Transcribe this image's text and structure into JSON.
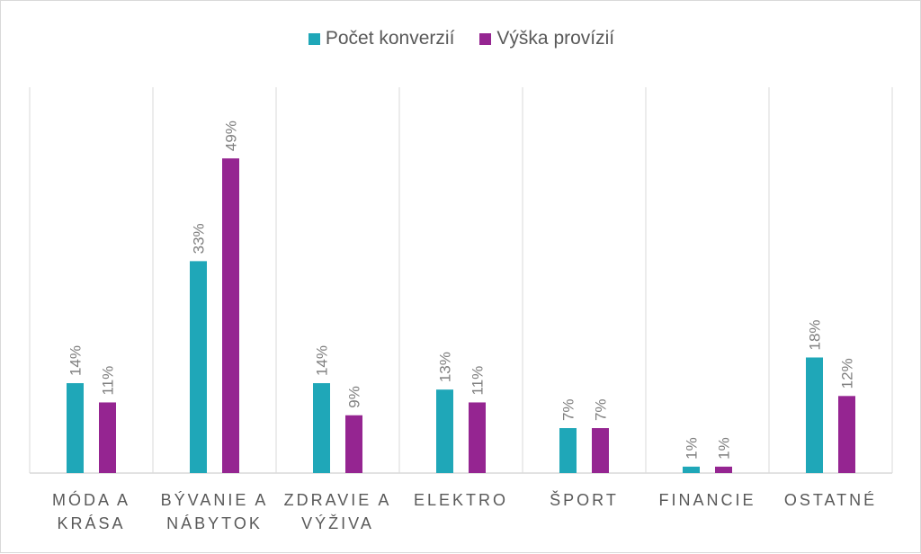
{
  "chart_data": {
    "type": "bar",
    "categories": [
      "MÓDA A KRÁSA",
      "BÝVANIE A NÁBYTOK",
      "ZDRAVIE A VÝŽIVA",
      "ELEKTRO",
      "ŠPORT",
      "FINANCIE",
      "OSTATNÉ"
    ],
    "series": [
      {
        "name": "Počet konverzií",
        "color": "#1fa7b8",
        "values": [
          14,
          33,
          14,
          13,
          7,
          1,
          18
        ]
      },
      {
        "name": "Výška provízií",
        "color": "#952591",
        "values": [
          11,
          49,
          9,
          11,
          7,
          1,
          12
        ]
      }
    ],
    "value_suffix": "%",
    "legend": "top",
    "grid": "vertical category separators",
    "ylim": [
      0,
      60
    ]
  }
}
